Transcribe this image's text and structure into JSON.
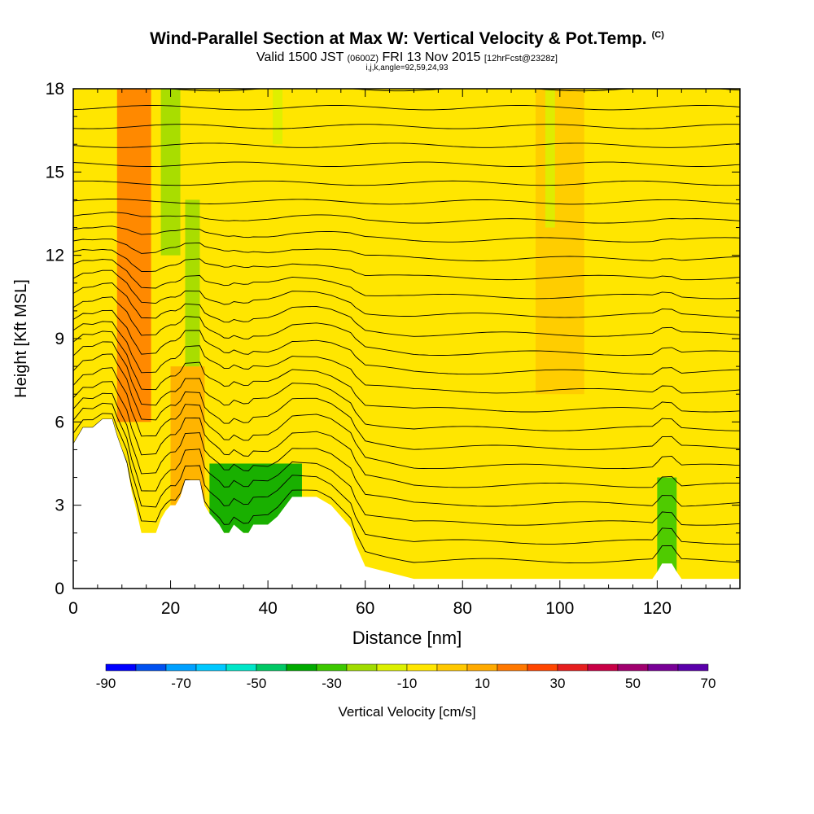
{
  "header": {
    "title": "Wind-Parallel Section at Max W: Vertical Velocity & Pot.Temp.",
    "units_tag": "(C)",
    "valid_main": "Valid 1500 JST",
    "valid_utc": "(0600Z)",
    "valid_date": "FRI 13 Nov 2015",
    "forecast": "[12hrFcst@2328z]",
    "indices": "i,j,k,angle=92,59,24,93"
  },
  "chart_data": {
    "type": "heatmap",
    "xlabel": "Distance [nm]",
    "ylabel": "Height [Kft MSL]",
    "xlim": [
      0,
      137
    ],
    "ylim": [
      0,
      18
    ],
    "x_ticks": [
      0,
      20,
      40,
      60,
      80,
      100,
      120
    ],
    "y_ticks": [
      0,
      3,
      6,
      9,
      12,
      15,
      18
    ],
    "background_field": "Vertical Velocity [cm/s] mostly weak positive (-10 to 10)",
    "terrain_profile": {
      "x": [
        0,
        1,
        2,
        4,
        6,
        8,
        9,
        10,
        11,
        12,
        13,
        14,
        15,
        17,
        18,
        19,
        20,
        21,
        22,
        23,
        24,
        26,
        27,
        28,
        29,
        30,
        31,
        32,
        33,
        35,
        36,
        37,
        40,
        42,
        45,
        50,
        53,
        55,
        57,
        58,
        59,
        60,
        70,
        80,
        90,
        100,
        110,
        119,
        120,
        121,
        123,
        124,
        125,
        126,
        137
      ],
      "height": [
        5.2,
        5.5,
        5.8,
        5.8,
        6.1,
        6.1,
        5.5,
        5.0,
        4.5,
        3.5,
        2.8,
        2.0,
        2.0,
        2.0,
        2.5,
        2.8,
        3.0,
        3.0,
        3.3,
        3.9,
        3.9,
        3.9,
        3.0,
        2.7,
        2.5,
        2.3,
        2.0,
        2.0,
        2.3,
        2.0,
        2.0,
        2.3,
        2.3,
        2.6,
        3.3,
        3.3,
        3.0,
        2.6,
        2.2,
        1.6,
        1.2,
        0.8,
        0.35,
        0.35,
        0.35,
        0.35,
        0.35,
        0.35,
        0.6,
        0.9,
        0.9,
        0.6,
        0.35,
        0.35,
        0.35
      ]
    },
    "theta_isentropes": {
      "label": "Potential Temperature (C)",
      "levels": [
        12,
        14,
        16,
        18,
        20,
        22,
        24,
        26,
        28,
        30,
        32,
        34,
        36,
        38,
        40,
        42,
        44,
        46,
        48,
        50,
        52,
        54,
        56,
        58,
        60,
        62
      ]
    },
    "colorbar": {
      "label": "Vertical Velocity [cm/s]",
      "tick_labels": [
        "-90",
        "-70",
        "-50",
        "-30",
        "-10",
        "10",
        "30",
        "50",
        "70"
      ],
      "colors": [
        "#0000ff",
        "#0050f0",
        "#00a0ff",
        "#00c8ff",
        "#00e6c8",
        "#00c864",
        "#00aa00",
        "#3cc800",
        "#a0dc00",
        "#dcf000",
        "#ffe600",
        "#ffc800",
        "#ffaa00",
        "#ff7800",
        "#ff4600",
        "#e61e1e",
        "#c80046",
        "#a0006e",
        "#780096",
        "#5a00aa"
      ]
    },
    "updraft_zones": [
      {
        "x": [
          9,
          16
        ],
        "height": [
          6,
          18
        ],
        "value": 30
      },
      {
        "x": [
          20,
          27
        ],
        "height": [
          3,
          8
        ],
        "value": 20
      },
      {
        "x": [
          95,
          105
        ],
        "height": [
          7,
          18
        ],
        "value": 10
      }
    ],
    "downdraft_zones": [
      {
        "x": [
          18,
          22
        ],
        "height": [
          12,
          18
        ],
        "value": -20
      },
      {
        "x": [
          23,
          26
        ],
        "height": [
          8,
          14
        ],
        "value": -20
      },
      {
        "x": [
          28,
          47
        ],
        "height": [
          2,
          4.5
        ],
        "value": -40
      },
      {
        "x": [
          120,
          124
        ],
        "height": [
          0.5,
          4
        ],
        "value": -30
      },
      {
        "x": [
          97,
          99
        ],
        "height": [
          13,
          18
        ],
        "value": -10
      },
      {
        "x": [
          41,
          43
        ],
        "height": [
          16,
          18
        ],
        "value": -10
      }
    ]
  }
}
